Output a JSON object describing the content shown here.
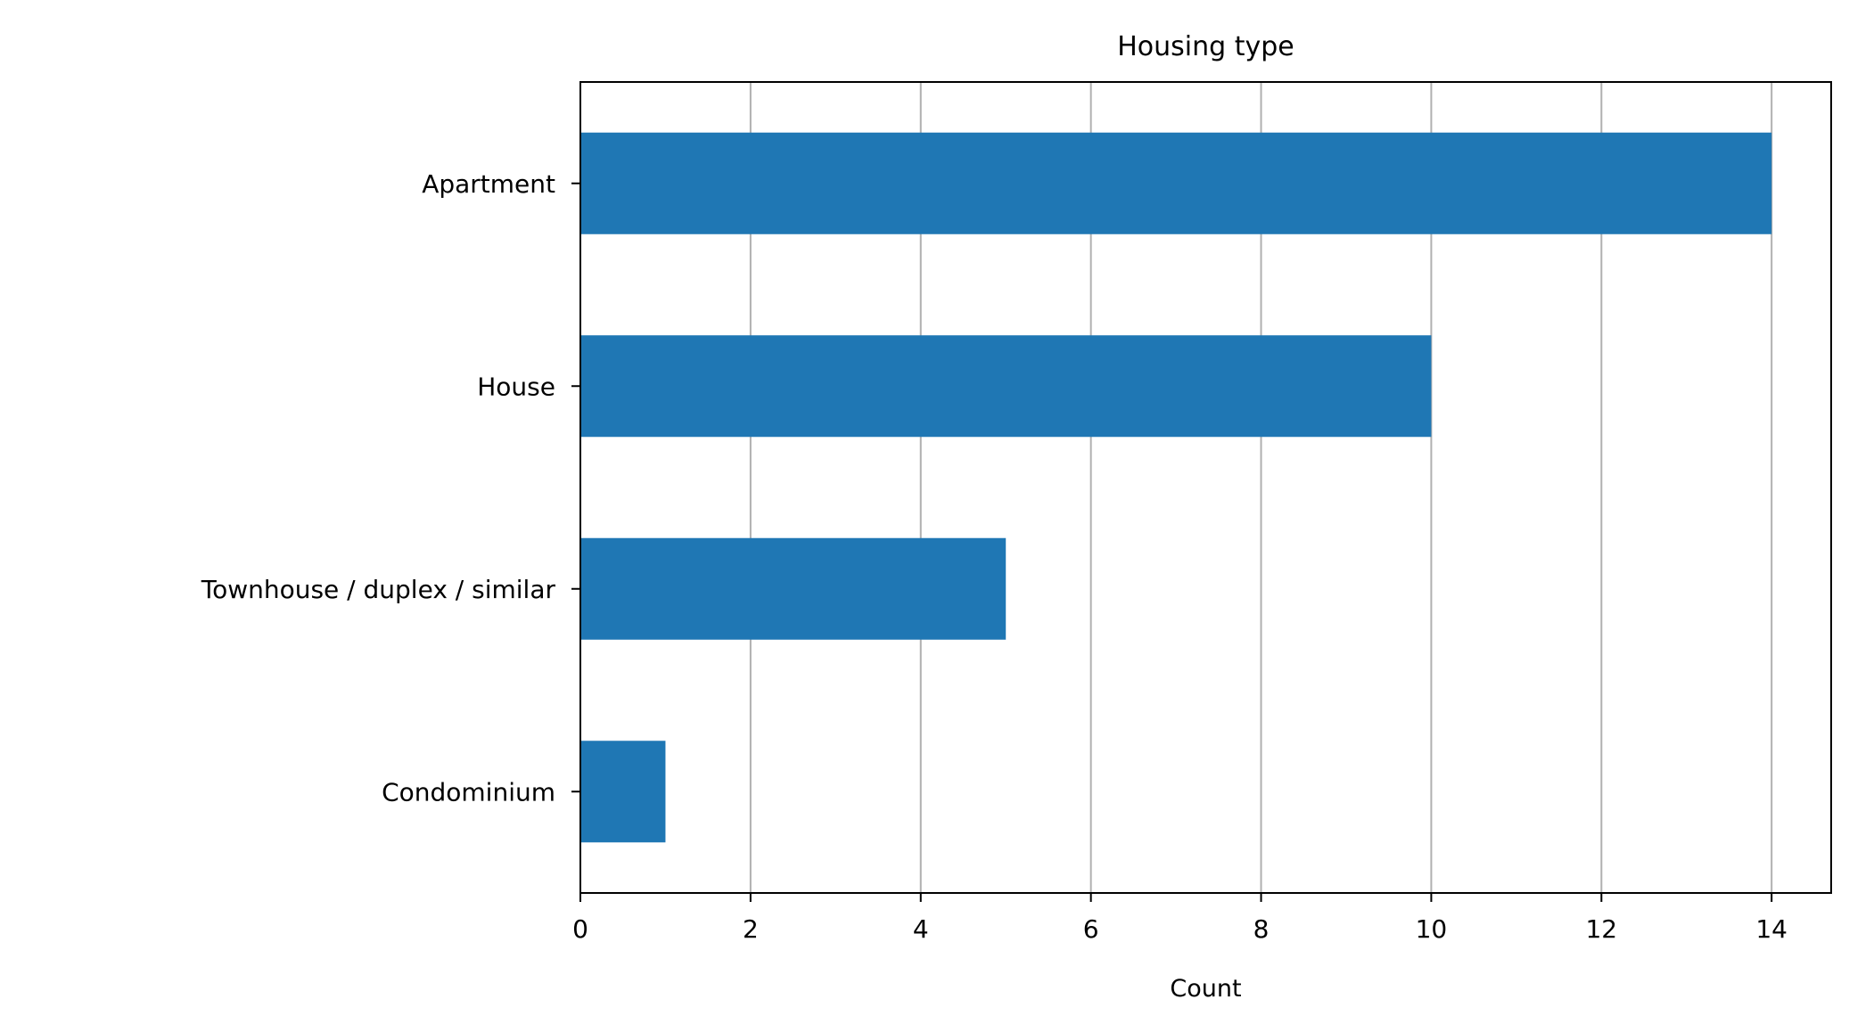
{
  "chart_data": {
    "type": "bar",
    "orientation": "horizontal",
    "title": "Housing type",
    "xlabel": "Count",
    "ylabel": "",
    "categories": [
      "Apartment",
      "House",
      "Townhouse / duplex / similar",
      "Condominium"
    ],
    "values": [
      14,
      10,
      5,
      1
    ],
    "xlim": [
      0,
      14.7
    ],
    "xticks": [
      "0",
      "2",
      "4",
      "6",
      "8",
      "10",
      "12",
      "14"
    ],
    "grid": "x-major",
    "legend": "none",
    "bar_color": "#1f77b4",
    "grid_color": "#b0b0b0"
  }
}
